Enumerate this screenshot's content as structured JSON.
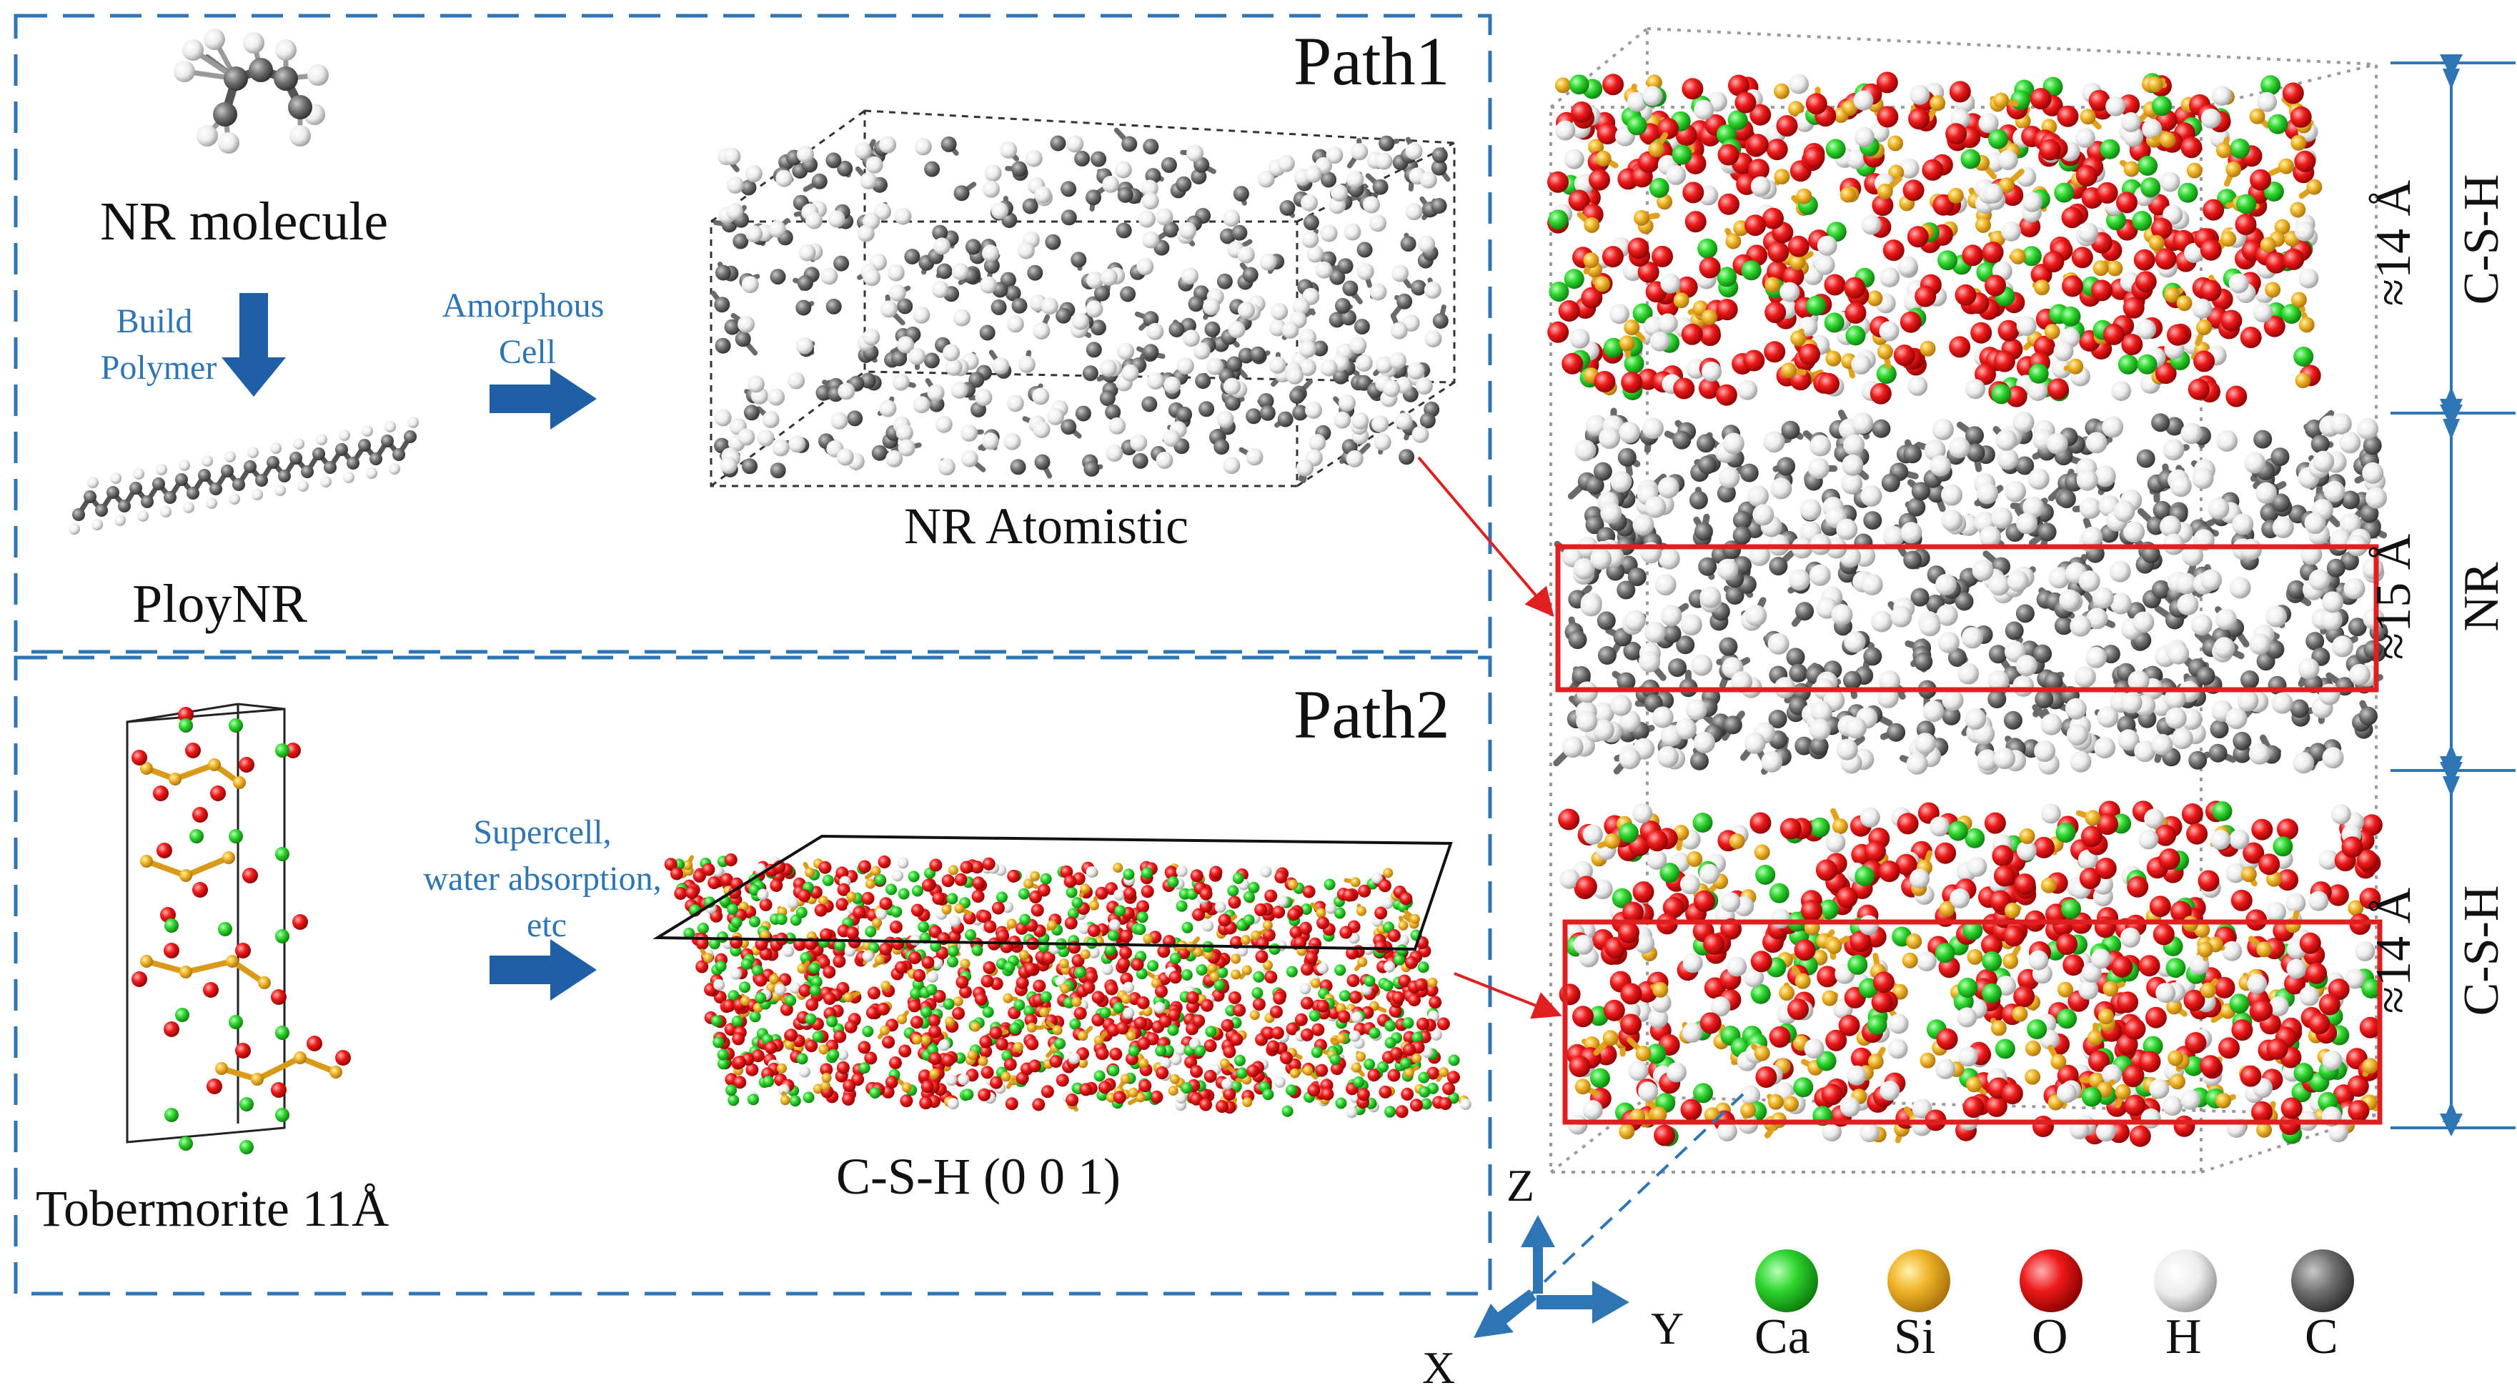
{
  "panels": {
    "path1": {
      "title": "Path1",
      "molecule_label": "NR molecule",
      "step1": [
        "Build",
        "Polymer"
      ],
      "polymer_label": "PloyNR",
      "step2": [
        "Amorphous",
        "Cell"
      ],
      "cell_label": "NR Atomistic"
    },
    "path2": {
      "title": "Path2",
      "crystal_label": "Tobermorite 11Å",
      "step": [
        "Supercell,",
        "water absorption,",
        "etc"
      ],
      "surface_label": "C-S-H (0 0 1)"
    }
  },
  "model": {
    "layers": [
      {
        "name": "C-S-H",
        "thickness": "≈14 Å"
      },
      {
        "name": "NR",
        "thickness": "≈15 Å"
      },
      {
        "name": "C-S-H",
        "thickness": "≈14 Å"
      }
    ],
    "axes": {
      "x": "X",
      "y": "Y",
      "z": "Z"
    }
  },
  "legend": [
    {
      "element": "Ca",
      "color": "#22c422"
    },
    {
      "element": "Si",
      "color": "#e8a21c"
    },
    {
      "element": "O",
      "color": "#e81010"
    },
    {
      "element": "H",
      "color": "#e6e6e6"
    },
    {
      "element": "C",
      "color": "#6f6f6f"
    }
  ],
  "colors": {
    "panel_border": "#2e75b6",
    "arrow_fill": "#1f5fa6",
    "highlight": "#e02020",
    "dimension_line": "#2e75b6"
  }
}
